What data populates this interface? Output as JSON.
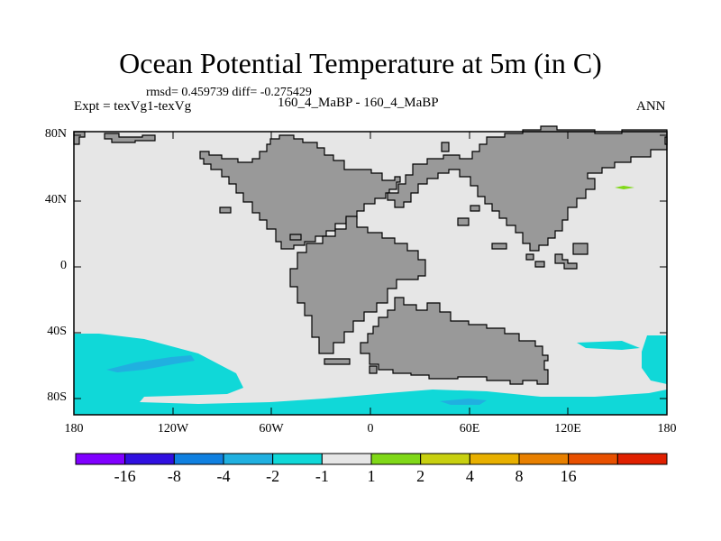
{
  "title": "Ocean Potential Temperature at 5m (in C)",
  "stats_line": "rmsd= 0.459739 diff= -0.275429",
  "left_label": "Expt = texVg1-texVg",
  "center_label": "160_4_MaBP - 160_4_MaBP",
  "right_label": "ANN",
  "colors": {
    "ocean": "#e6e6e6",
    "land": "#999999",
    "coast": "#000000",
    "anomaly_m2_m1": "#10d8d8",
    "anomaly_m4_m2": "#20b0e0",
    "anomaly_1_2": "#80d818"
  },
  "axes": {
    "y_ticks": [
      "80N",
      "40N",
      "0",
      "40S",
      "80S"
    ],
    "x_ticks": [
      "180",
      "120W",
      "60W",
      "0",
      "60E",
      "120E",
      "180"
    ]
  },
  "colorbar": {
    "colors": [
      "#8000ff",
      "#3010e0",
      "#1080e0",
      "#20b0e0",
      "#10d8d8",
      "#e6e6e6",
      "#80d818",
      "#c8d010",
      "#e8b000",
      "#e88000",
      "#e85000",
      "#e02000"
    ],
    "labels": [
      "-16",
      "-8",
      "-4",
      "-2",
      "-1",
      "1",
      "2",
      "4",
      "8",
      "16"
    ]
  }
}
